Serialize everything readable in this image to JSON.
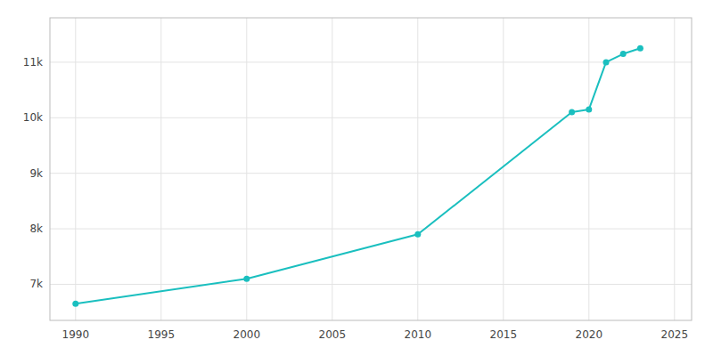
{
  "chart_data": {
    "type": "line",
    "x": [
      1990,
      2000,
      2010,
      2019,
      2020,
      2021,
      2022,
      2023
    ],
    "values": [
      6650,
      7100,
      7900,
      10100,
      10150,
      11000,
      11150,
      11250
    ],
    "color": "#1abfbf",
    "marker": "circle",
    "xlim": [
      1988.5,
      2026
    ],
    "ylim": [
      6350,
      11800
    ],
    "xticks": [
      1990,
      1995,
      2000,
      2005,
      2010,
      2015,
      2020,
      2025
    ],
    "yticks": [
      {
        "value": 7000,
        "label": "7k"
      },
      {
        "value": 8000,
        "label": "8k"
      },
      {
        "value": 9000,
        "label": "9k"
      },
      {
        "value": 10000,
        "label": "10k"
      },
      {
        "value": 11000,
        "label": "11k"
      }
    ],
    "grid": true
  }
}
